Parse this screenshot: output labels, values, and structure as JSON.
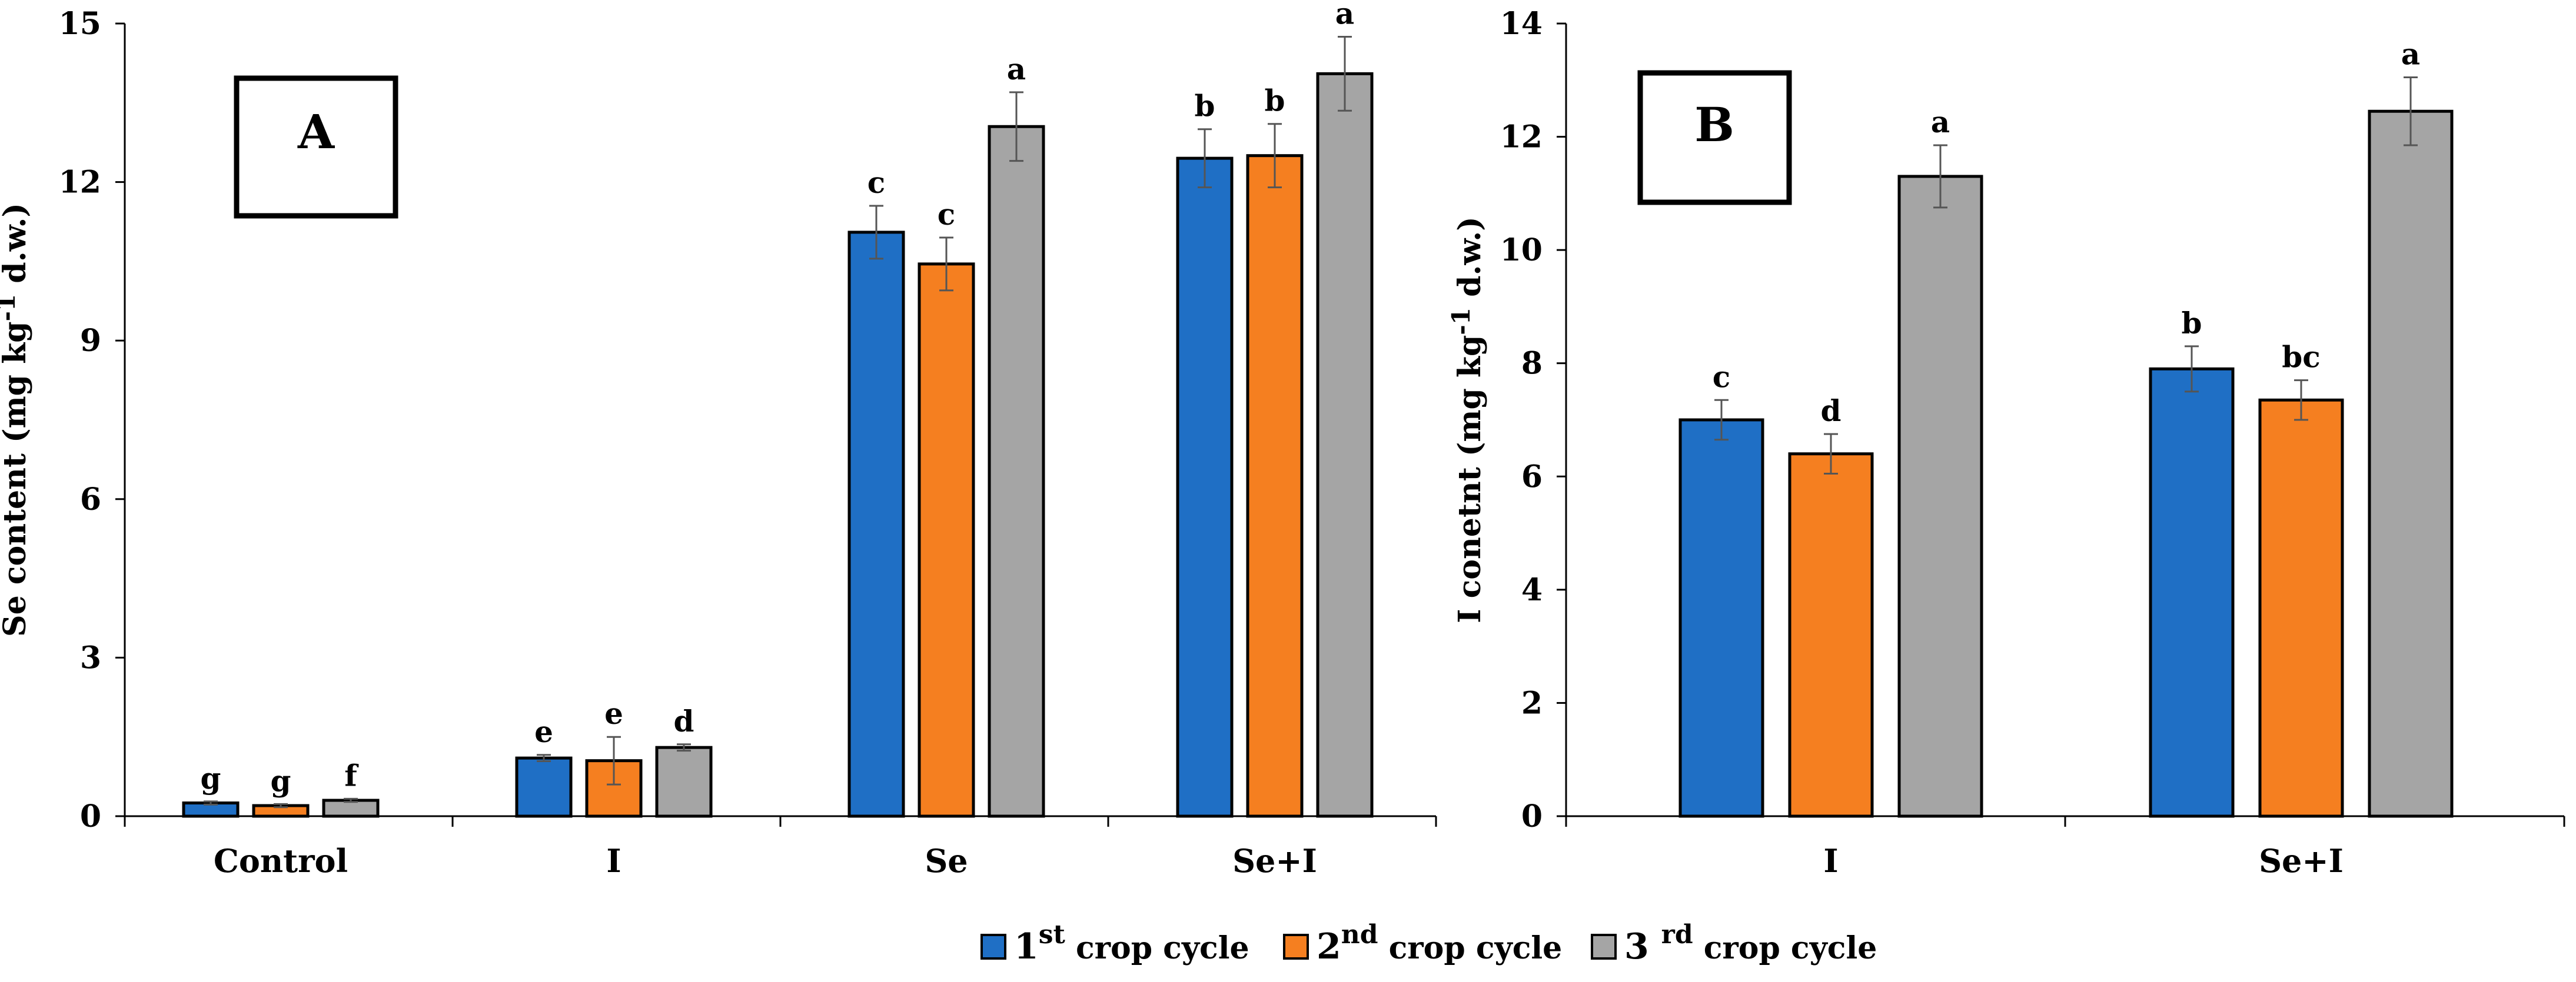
{
  "colors": {
    "series1": "#1f6fc5",
    "series2": "#f57f20",
    "series3": "#a5a5a5"
  },
  "legend": [
    {
      "pre": "1",
      "sup": "st",
      "post": " crop cycle"
    },
    {
      "pre": "2",
      "sup": "nd",
      "post": " crop cycle"
    },
    {
      "pre": "3 ",
      "sup": "rd",
      "post": " crop cycle"
    }
  ],
  "chart_data": [
    {
      "type": "bar",
      "panel": "A",
      "ylabel": {
        "pre": "Se content (mg kg",
        "sup": "-1",
        "post": " d.w.)"
      },
      "ylim": [
        0,
        15
      ],
      "yticks": [
        0,
        3,
        6,
        9,
        12,
        15
      ],
      "categories": [
        "Control",
        "I",
        "Se",
        "Se+I"
      ],
      "series": [
        {
          "name": "1st crop cycle",
          "values": [
            0.25,
            1.1,
            11.05,
            12.45
          ],
          "errors": [
            0.03,
            0.06,
            0.5,
            0.55
          ],
          "letters": [
            "g",
            "e",
            "c",
            "b"
          ]
        },
        {
          "name": "2nd crop cycle",
          "values": [
            0.2,
            1.05,
            10.45,
            12.5
          ],
          "errors": [
            0.03,
            0.45,
            0.5,
            0.6
          ],
          "letters": [
            "g",
            "e",
            "c",
            "b"
          ]
        },
        {
          "name": "3rd crop cycle",
          "values": [
            0.3,
            1.3,
            13.05,
            14.05
          ],
          "errors": [
            0.03,
            0.06,
            0.65,
            0.7
          ],
          "letters": [
            "f",
            "d",
            "a",
            "a"
          ]
        }
      ]
    },
    {
      "type": "bar",
      "panel": "B",
      "ylabel": {
        "pre": "I conetnt (mg kg",
        "sup": "-1",
        "post": " d.w.)"
      },
      "ylim": [
        0,
        14
      ],
      "yticks": [
        0,
        2,
        4,
        6,
        8,
        10,
        12,
        14
      ],
      "categories": [
        "I",
        "Se+I"
      ],
      "series": [
        {
          "name": "1st crop cycle",
          "values": [
            7.0,
            7.9
          ],
          "errors": [
            0.35,
            0.4
          ],
          "letters": [
            "c",
            "b"
          ]
        },
        {
          "name": "2nd crop cycle",
          "values": [
            6.4,
            7.35
          ],
          "errors": [
            0.35,
            0.35
          ],
          "letters": [
            "d",
            "bc"
          ]
        },
        {
          "name": "3rd crop cycle",
          "values": [
            11.3,
            12.45
          ],
          "errors": [
            0.55,
            0.6
          ],
          "letters": [
            "a",
            "a"
          ]
        }
      ]
    }
  ]
}
